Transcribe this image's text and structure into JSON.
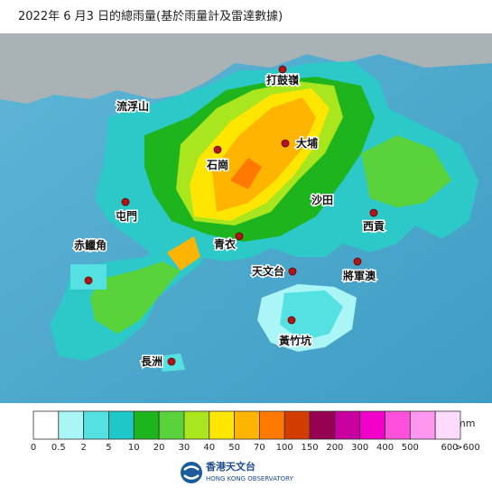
{
  "header": {
    "title": "2022年 6 月3 日的總雨量(基於雨量計及雷達數據)"
  },
  "places": [
    {
      "name": "打鼓嶺"
    },
    {
      "name": "流浮山"
    },
    {
      "name": "大埔"
    },
    {
      "name": "石崗"
    },
    {
      "name": "沙田"
    },
    {
      "name": "屯門"
    },
    {
      "name": "西貢"
    },
    {
      "name": "青衣"
    },
    {
      "name": "赤鱲角"
    },
    {
      "name": "天文台"
    },
    {
      "name": "將軍澳"
    },
    {
      "name": "黃竹坑"
    },
    {
      "name": "長洲"
    }
  ],
  "legend": {
    "unit": "mm",
    "colors": [
      "#ffffff",
      "#aaf5f5",
      "#55e1e1",
      "#1ec8c8",
      "#1eb41e",
      "#5ad23c",
      "#aae61e",
      "#ffe600",
      "#ffb400",
      "#ff7800",
      "#d23c00",
      "#960050",
      "#c800a0",
      "#f000c8",
      "#ff50dc",
      "#ff96f0",
      "#ffdcff"
    ],
    "labels": [
      "0",
      "0.5",
      "2",
      "5",
      "10",
      "20",
      "30",
      "40",
      "50",
      "70",
      "100",
      "150",
      "200",
      "300",
      "400",
      "500",
      "600",
      ">600"
    ]
  },
  "footer": {
    "name_zh": "香港天文台",
    "name_en": "HONG KONG OBSERVATORY"
  }
}
